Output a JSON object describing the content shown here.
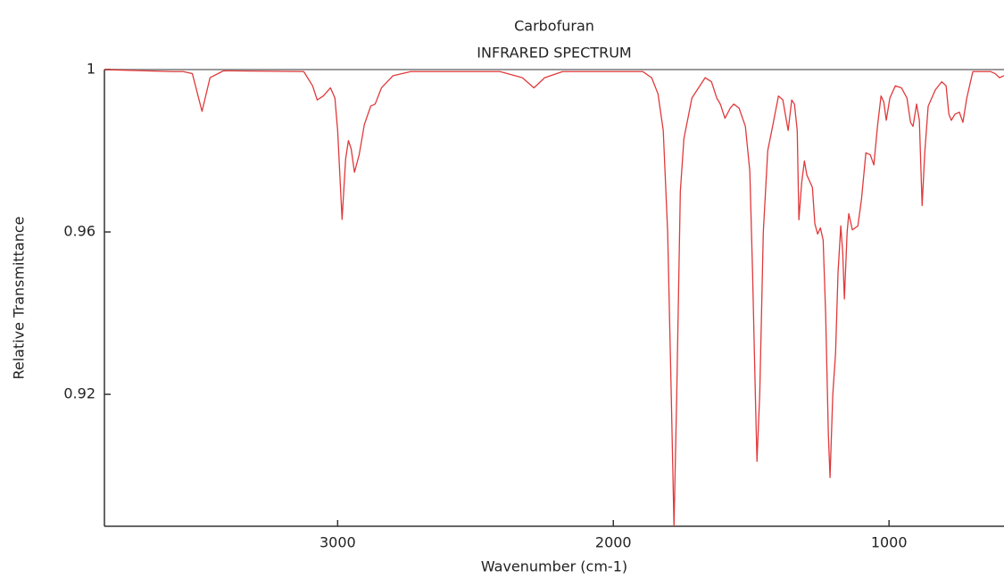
{
  "chart_data": {
    "type": "line",
    "title": "Carbofuran",
    "subtitle": "INFRARED SPECTRUM",
    "x_label": "Wavenumber (cm-1)",
    "y_label": "Relative Transmittance",
    "color": "#e0393b",
    "xlim": [
      3846,
      583
    ],
    "ylim": [
      0.8875,
      1.0
    ],
    "xticks": [
      3000,
      2000,
      1000
    ],
    "yticks": [
      1,
      0.96,
      0.92
    ],
    "grid": false,
    "x": [
      3846,
      3600,
      3560,
      3527,
      3492,
      3463,
      3414,
      3123,
      3091,
      3074,
      3052,
      3026,
      3010,
      3000,
      2984,
      2971,
      2961,
      2951,
      2939,
      2922,
      2903,
      2880,
      2864,
      2841,
      2799,
      2735,
      2411,
      2330,
      2288,
      2249,
      2184,
      1893,
      1861,
      1838,
      1819,
      1803,
      1790,
      1780,
      1770,
      1757,
      1744,
      1715,
      1667,
      1644,
      1625,
      1612,
      1595,
      1576,
      1563,
      1544,
      1521,
      1505,
      1495,
      1485,
      1479,
      1469,
      1456,
      1440,
      1421,
      1401,
      1385,
      1375,
      1366,
      1353,
      1343,
      1333,
      1327,
      1317,
      1307,
      1298,
      1288,
      1278,
      1269,
      1259,
      1249,
      1239,
      1230,
      1220,
      1214,
      1204,
      1194,
      1185,
      1175,
      1168,
      1162,
      1152,
      1146,
      1133,
      1113,
      1100,
      1084,
      1068,
      1055,
      1042,
      1029,
      1019,
      1010,
      997,
      977,
      955,
      935,
      922,
      913,
      900,
      890,
      880,
      870,
      858,
      832,
      809,
      793,
      783,
      774,
      761,
      745,
      732,
      718,
      696,
      631,
      615,
      599,
      583
    ],
    "values": [
      1.0,
      0.9995,
      0.9995,
      0.999,
      0.9897,
      0.998,
      0.9997,
      0.9995,
      0.996,
      0.9925,
      0.9935,
      0.9955,
      0.993,
      0.985,
      0.9631,
      0.978,
      0.9825,
      0.9805,
      0.9747,
      0.979,
      0.9865,
      0.991,
      0.9915,
      0.9955,
      0.9985,
      0.9995,
      0.9995,
      0.998,
      0.9955,
      0.998,
      0.9995,
      0.9995,
      0.998,
      0.994,
      0.985,
      0.96,
      0.92,
      0.8875,
      0.92,
      0.97,
      0.983,
      0.993,
      0.998,
      0.997,
      0.993,
      0.9915,
      0.988,
      0.9905,
      0.9915,
      0.9905,
      0.986,
      0.975,
      0.95,
      0.92,
      0.9035,
      0.92,
      0.96,
      0.98,
      0.9865,
      0.9935,
      0.9925,
      0.9885,
      0.985,
      0.9925,
      0.9915,
      0.985,
      0.963,
      0.972,
      0.9775,
      0.974,
      0.9725,
      0.971,
      0.962,
      0.9595,
      0.961,
      0.958,
      0.94,
      0.91,
      0.8995,
      0.92,
      0.93,
      0.95,
      0.9615,
      0.955,
      0.9435,
      0.96,
      0.9645,
      0.9605,
      0.9615,
      0.968,
      0.9795,
      0.979,
      0.9765,
      0.986,
      0.9935,
      0.992,
      0.9875,
      0.993,
      0.996,
      0.9955,
      0.993,
      0.987,
      0.986,
      0.9915,
      0.9875,
      0.9665,
      0.98,
      0.991,
      0.995,
      0.997,
      0.996,
      0.989,
      0.9875,
      0.989,
      0.9895,
      0.987,
      0.993,
      0.9995,
      0.9995,
      0.999,
      0.998,
      0.9985
    ]
  }
}
